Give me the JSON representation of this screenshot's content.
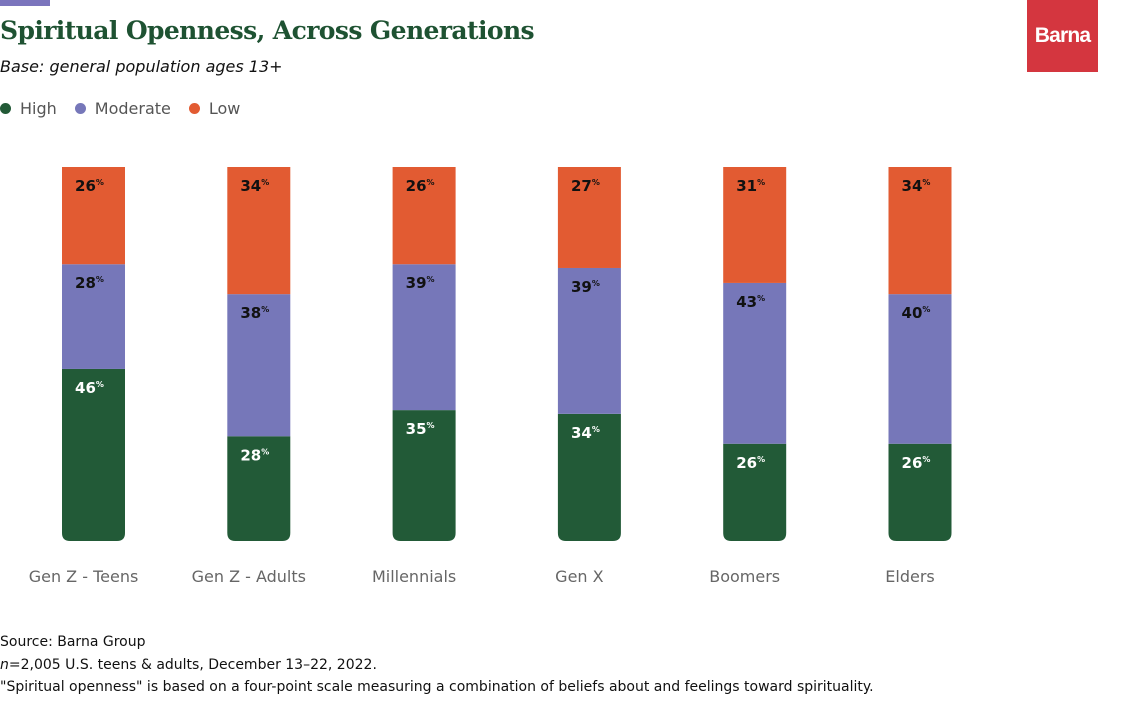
{
  "title": "Spiritual Openness, Across Generations",
  "subtitle": "Base: general population ages 13+",
  "logo": "Barna",
  "legend": [
    {
      "label": "High",
      "color": "#225a37"
    },
    {
      "label": "Moderate",
      "color": "#7677b9"
    },
    {
      "label": "Low",
      "color": "#e25b32"
    }
  ],
  "chart_data": {
    "type": "bar",
    "stacked": true,
    "title": "Spiritual Openness, Across Generations",
    "subtitle": "Base: general population ages 13+",
    "categories": [
      "Gen Z - Teens",
      "Gen Z - Adults",
      "Millennials",
      "Gen X",
      "Boomers",
      "Elders"
    ],
    "series": [
      {
        "name": "High",
        "color": "#225a37",
        "values": [
          46,
          28,
          35,
          34,
          26,
          26
        ]
      },
      {
        "name": "Moderate",
        "color": "#7677b9",
        "values": [
          28,
          38,
          39,
          39,
          43,
          40
        ]
      },
      {
        "name": "Low",
        "color": "#e25b32",
        "values": [
          26,
          34,
          26,
          27,
          31,
          34
        ]
      }
    ],
    "value_suffix": "%",
    "ylim": [
      0,
      100
    ],
    "xlabel": "",
    "ylabel": "",
    "grid": false,
    "legend_position": "top-left"
  },
  "footer": {
    "source": "Source: Barna Group",
    "n_italic": "n",
    "sample": "=2,005 U.S. teens & adults, December 13–22, 2022.",
    "note": "\"Spiritual openness\" is based on a four-point scale measuring a combination of beliefs about and feelings toward spirituality."
  }
}
